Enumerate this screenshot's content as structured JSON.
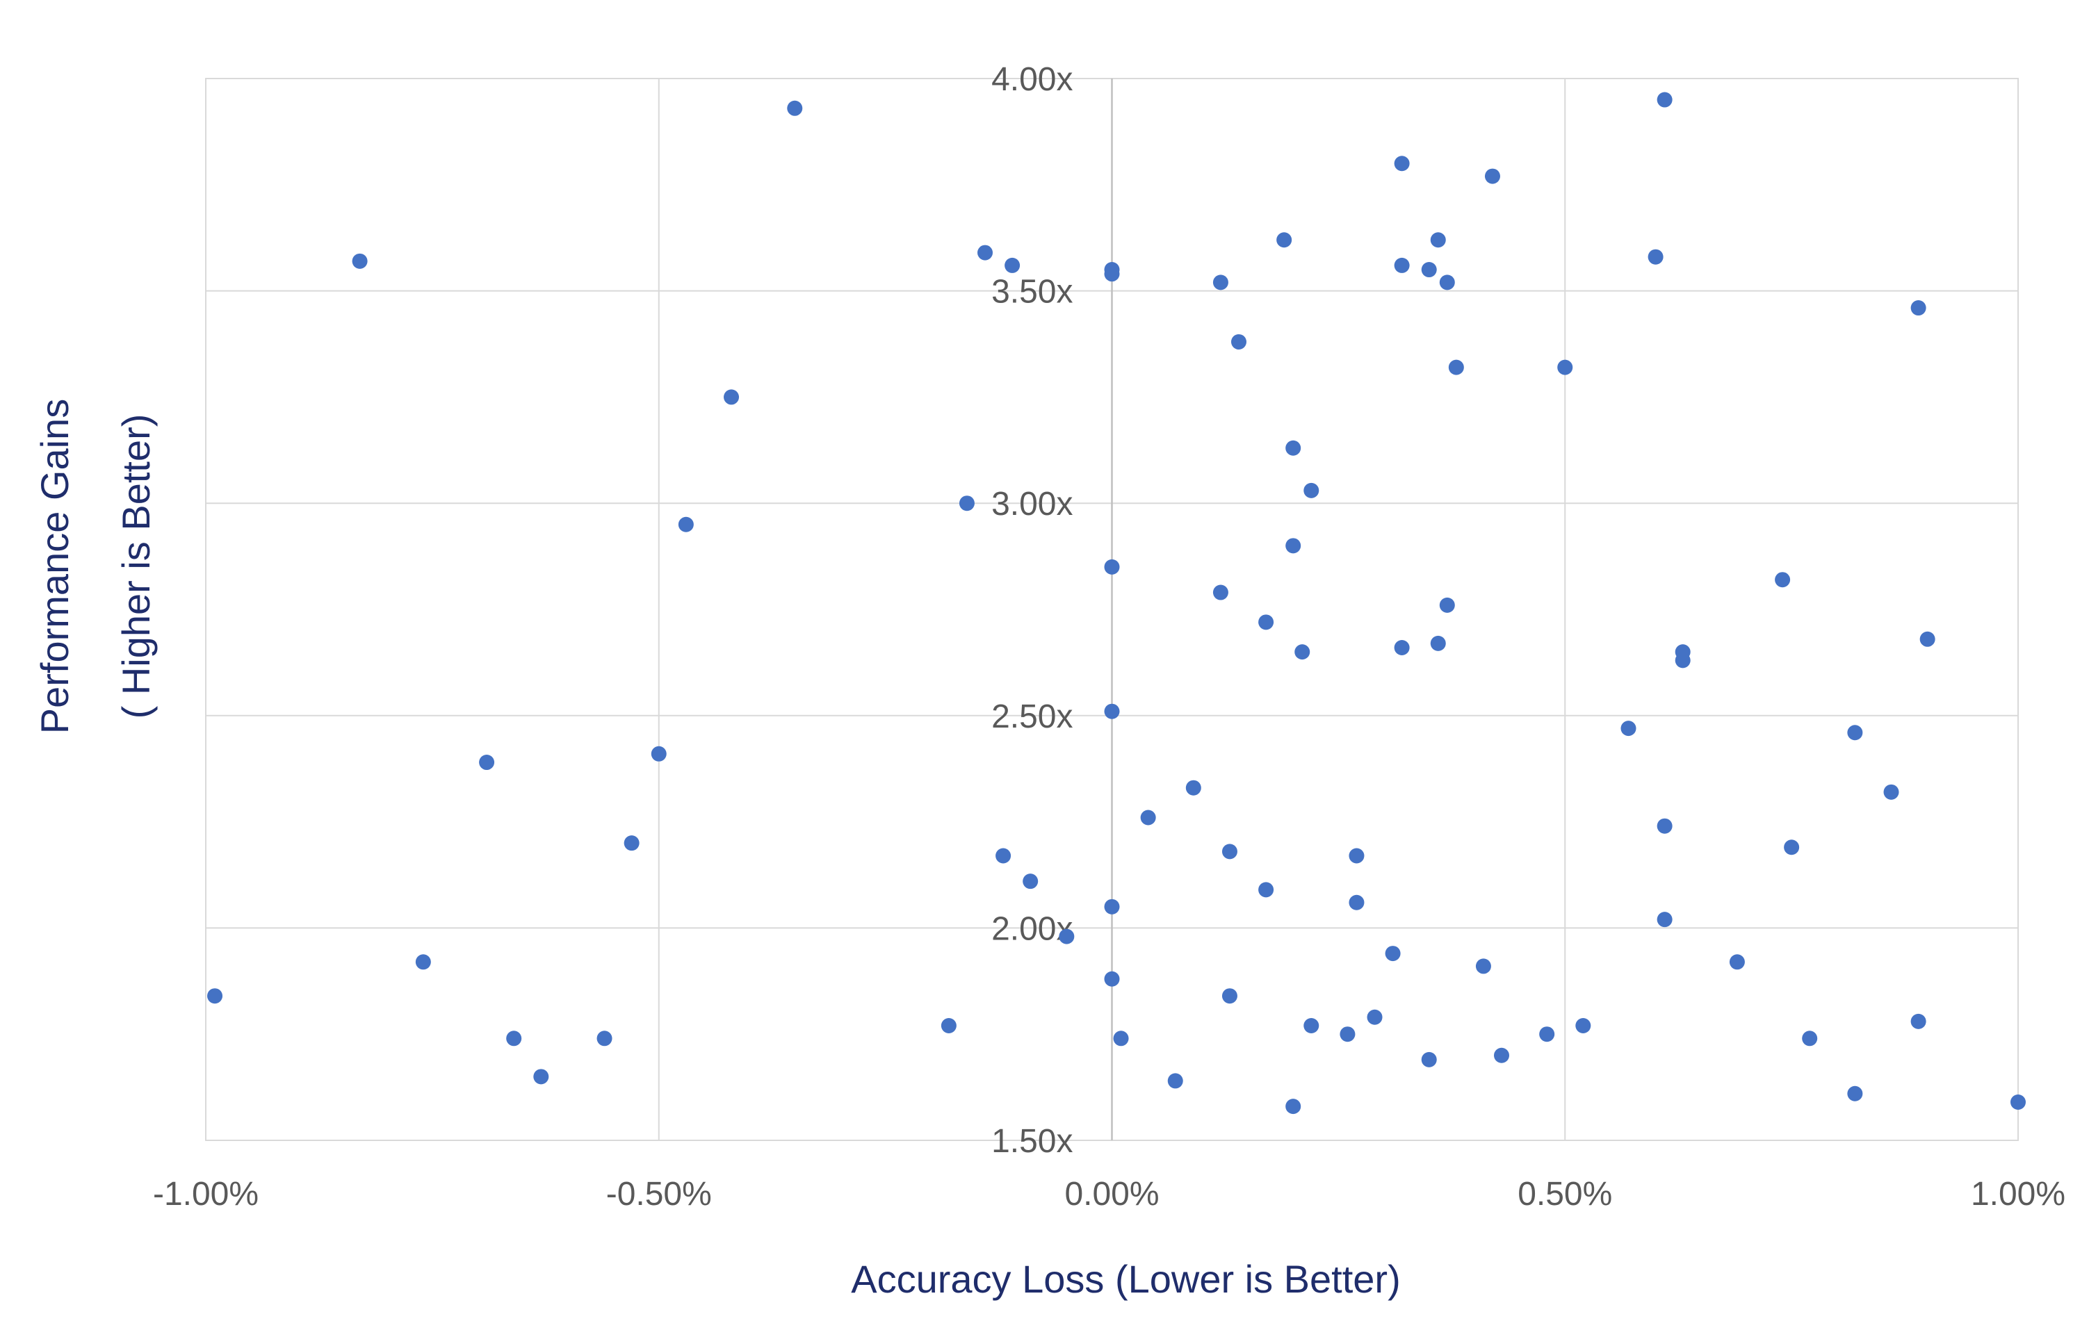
{
  "chart_data": {
    "type": "scatter",
    "title": "",
    "xlabel": "Accuracy Loss (Lower is Better)",
    "ylabel_lines": [
      "Performance Gains",
      "( Higher is Better)"
    ],
    "xlim": [
      -1.0,
      1.0
    ],
    "ylim": [
      1.5,
      4.0
    ],
    "x_ticks": [
      -1.0,
      -0.5,
      0.0,
      0.5,
      1.0
    ],
    "x_tick_labels": [
      "-1.00%",
      "-0.50%",
      "0.00%",
      "0.50%",
      "1.00%"
    ],
    "y_ticks": [
      1.5,
      2.0,
      2.5,
      3.0,
      3.5,
      4.0
    ],
    "y_tick_labels": [
      "1.50x",
      "2.00x",
      "2.50x",
      "3.00x",
      "3.50x",
      "4.00x"
    ],
    "grid": true,
    "legend": "none",
    "marker_color": "#4472c4",
    "points": [
      {
        "x": -0.35,
        "y": 3.93
      },
      {
        "x": -0.83,
        "y": 3.57
      },
      {
        "x": -0.42,
        "y": 3.25
      },
      {
        "x": -0.47,
        "y": 2.95
      },
      {
        "x": -0.16,
        "y": 3.0
      },
      {
        "x": -0.14,
        "y": 3.59
      },
      {
        "x": -0.11,
        "y": 3.56
      },
      {
        "x": 0.0,
        "y": 3.55
      },
      {
        "x": 0.0,
        "y": 3.54
      },
      {
        "x": 0.12,
        "y": 3.52
      },
      {
        "x": 0.19,
        "y": 3.62
      },
      {
        "x": 0.14,
        "y": 3.38
      },
      {
        "x": 0.32,
        "y": 3.8
      },
      {
        "x": 0.32,
        "y": 3.56
      },
      {
        "x": 0.35,
        "y": 3.55
      },
      {
        "x": 0.36,
        "y": 3.62
      },
      {
        "x": 0.37,
        "y": 3.52
      },
      {
        "x": 0.42,
        "y": 3.77
      },
      {
        "x": 0.38,
        "y": 3.32
      },
      {
        "x": 0.5,
        "y": 3.32
      },
      {
        "x": 0.61,
        "y": 3.95
      },
      {
        "x": 0.6,
        "y": 3.58
      },
      {
        "x": 0.89,
        "y": 3.46
      },
      {
        "x": 0.2,
        "y": 3.13
      },
      {
        "x": 0.22,
        "y": 3.03
      },
      {
        "x": 0.2,
        "y": 2.9
      },
      {
        "x": 0.0,
        "y": 2.85
      },
      {
        "x": 0.12,
        "y": 2.79
      },
      {
        "x": 0.17,
        "y": 2.72
      },
      {
        "x": 0.21,
        "y": 2.65
      },
      {
        "x": 0.32,
        "y": 2.66
      },
      {
        "x": 0.36,
        "y": 2.67
      },
      {
        "x": 0.37,
        "y": 2.76
      },
      {
        "x": 0.74,
        "y": 2.82
      },
      {
        "x": 0.63,
        "y": 2.65
      },
      {
        "x": 0.63,
        "y": 2.63
      },
      {
        "x": 0.9,
        "y": 2.68
      },
      {
        "x": 0.0,
        "y": 2.51
      },
      {
        "x": 0.57,
        "y": 2.47
      },
      {
        "x": 0.82,
        "y": 2.46
      },
      {
        "x": 0.86,
        "y": 2.32
      },
      {
        "x": -0.69,
        "y": 2.39
      },
      {
        "x": -0.5,
        "y": 2.41
      },
      {
        "x": -0.53,
        "y": 2.2
      },
      {
        "x": 0.09,
        "y": 2.33
      },
      {
        "x": 0.04,
        "y": 2.26
      },
      {
        "x": -0.12,
        "y": 2.17
      },
      {
        "x": -0.09,
        "y": 2.11
      },
      {
        "x": 0.13,
        "y": 2.18
      },
      {
        "x": 0.17,
        "y": 2.09
      },
      {
        "x": 0.27,
        "y": 2.17
      },
      {
        "x": 0.27,
        "y": 2.06
      },
      {
        "x": 0.61,
        "y": 2.24
      },
      {
        "x": 0.75,
        "y": 2.19
      },
      {
        "x": 0.0,
        "y": 2.05
      },
      {
        "x": -0.05,
        "y": 1.98
      },
      {
        "x": 0.61,
        "y": 2.02
      },
      {
        "x": 0.31,
        "y": 1.94
      },
      {
        "x": 0.41,
        "y": 1.91
      },
      {
        "x": 0.69,
        "y": 1.92
      },
      {
        "x": -0.76,
        "y": 1.92
      },
      {
        "x": -0.99,
        "y": 1.84
      },
      {
        "x": -0.66,
        "y": 1.74
      },
      {
        "x": -0.56,
        "y": 1.74
      },
      {
        "x": -0.63,
        "y": 1.65
      },
      {
        "x": -0.18,
        "y": 1.77
      },
      {
        "x": 0.0,
        "y": 1.88
      },
      {
        "x": 0.13,
        "y": 1.84
      },
      {
        "x": 0.01,
        "y": 1.74
      },
      {
        "x": 0.07,
        "y": 1.64
      },
      {
        "x": 0.22,
        "y": 1.77
      },
      {
        "x": 0.26,
        "y": 1.75
      },
      {
        "x": 0.29,
        "y": 1.79
      },
      {
        "x": 0.35,
        "y": 1.69
      },
      {
        "x": 0.43,
        "y": 1.7
      },
      {
        "x": 0.48,
        "y": 1.75
      },
      {
        "x": 0.52,
        "y": 1.77
      },
      {
        "x": 0.2,
        "y": 1.58
      },
      {
        "x": 0.77,
        "y": 1.74
      },
      {
        "x": 0.89,
        "y": 1.78
      },
      {
        "x": 0.82,
        "y": 1.61
      },
      {
        "x": 1.0,
        "y": 1.59
      }
    ]
  }
}
